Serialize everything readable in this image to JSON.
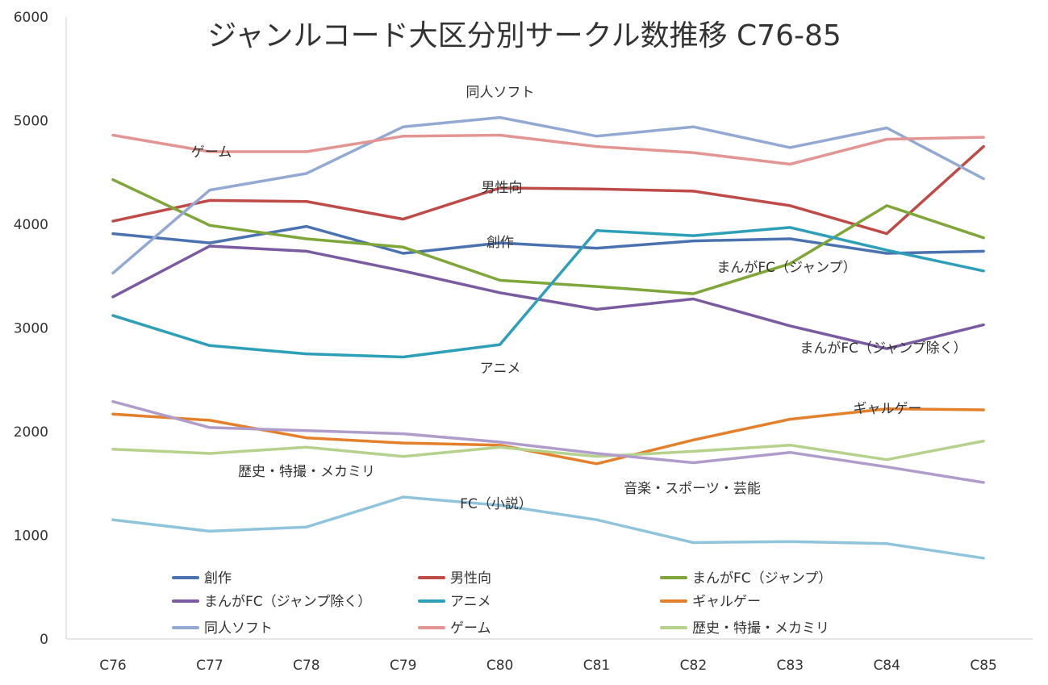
{
  "chart_data": {
    "type": "line",
    "title": "ジャンルコード大区分別サークル数推移 C76-85",
    "xlabel": "",
    "ylabel": "",
    "ylim": [
      0,
      6000
    ],
    "yticks": [
      "0",
      "1000",
      "2000",
      "3000",
      "4000",
      "5000",
      "6000"
    ],
    "categories": [
      "C76",
      "C77",
      "C78",
      "C79",
      "C80",
      "C81",
      "C82",
      "C83",
      "C84",
      "C85"
    ],
    "grid": false,
    "legend_position": "bottom",
    "series": [
      {
        "name": "創作",
        "color": "#4a72b0",
        "values": [
          3910,
          3820,
          3980,
          3720,
          3820,
          3770,
          3840,
          3860,
          3720,
          3740
        ]
      },
      {
        "name": "男性向",
        "color": "#be4b48",
        "values": [
          4030,
          4230,
          4220,
          4050,
          4350,
          4340,
          4320,
          4180,
          3910,
          4750
        ]
      },
      {
        "name": "まんがFC（ジャンプ）",
        "color": "#7ea639",
        "values": [
          4430,
          3990,
          3860,
          3780,
          3460,
          3400,
          3330,
          3620,
          4180,
          3870
        ]
      },
      {
        "name": "まんがFC（ジャンプ除く）",
        "color": "#7a5aa0",
        "values": [
          3300,
          3790,
          3740,
          3550,
          3340,
          3180,
          3280,
          3020,
          2800,
          3030
        ]
      },
      {
        "name": "アニメ",
        "color": "#2e9fb9",
        "values": [
          3120,
          2830,
          2750,
          2720,
          2840,
          3940,
          3890,
          3970,
          3750,
          3550
        ]
      },
      {
        "name": "ギャルゲー",
        "color": "#e4802c",
        "values": [
          2170,
          2110,
          1940,
          1890,
          1870,
          1690,
          1920,
          2120,
          2220,
          2210
        ]
      },
      {
        "name": "同人ソフト",
        "color": "#93a9d3",
        "values": [
          3530,
          4330,
          4490,
          4940,
          5030,
          4850,
          4940,
          4740,
          4930,
          4440
        ]
      },
      {
        "name": "ゲーム",
        "color": "#e39593",
        "values": [
          4860,
          4700,
          4700,
          4850,
          4860,
          4750,
          4690,
          4580,
          4820,
          4840
        ]
      },
      {
        "name": "歴史・特撮・メカミリ",
        "color": "#b5d18c",
        "values": [
          1830,
          1790,
          1850,
          1760,
          1850,
          1760,
          1810,
          1870,
          1730,
          1910
        ]
      },
      {
        "name": "音楽・スポーツ・芸能",
        "color": "#b09cca",
        "values": [
          2290,
          2040,
          2010,
          1980,
          1900,
          1790,
          1700,
          1800,
          1660,
          1510
        ]
      },
      {
        "name": "FC（小説）",
        "color": "#8fc4dc",
        "values": [
          1150,
          1040,
          1080,
          1370,
          1290,
          1150,
          930,
          940,
          920,
          780
        ]
      }
    ],
    "annotations": [
      {
        "text": "同人ソフト",
        "series": "同人ソフト"
      },
      {
        "text": "ゲーム",
        "series": "ゲーム"
      },
      {
        "text": "男性向",
        "series": "男性向"
      },
      {
        "text": "創作",
        "series": "創作"
      },
      {
        "text": "まんがFC（ジャンプ）",
        "series": "まんがFC（ジャンプ）"
      },
      {
        "text": "まんがFC（ジャンプ除く）",
        "series": "まんがFC（ジャンプ除く）"
      },
      {
        "text": "アニメ",
        "series": "アニメ"
      },
      {
        "text": "ギャルゲー",
        "series": "ギャルゲー"
      },
      {
        "text": "歴史・特撮・メカミリ",
        "series": "歴史・特撮・メカミリ"
      },
      {
        "text": "音楽・スポーツ・芸能",
        "series": "音楽・スポーツ・芸能"
      },
      {
        "text": "FC（小説）",
        "series": "FC（小説）"
      }
    ],
    "legend": [
      "創作",
      "男性向",
      "まんがFC（ジャンプ）",
      "まんがFC（ジャンプ除く）",
      "アニメ",
      "ギャルゲー",
      "同人ソフト",
      "ゲーム",
      "歴史・特撮・メカミリ"
    ]
  }
}
